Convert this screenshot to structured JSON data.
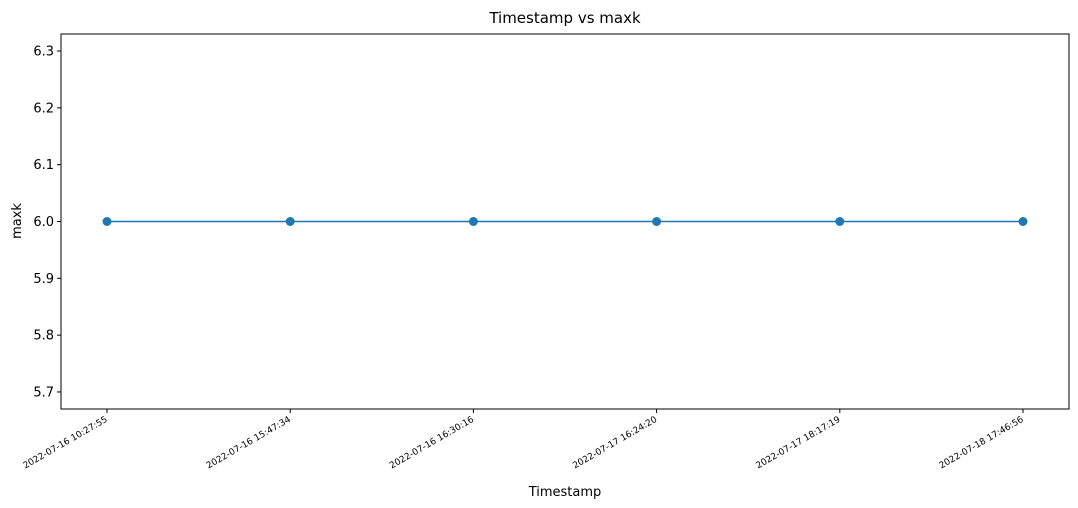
{
  "chart_data": {
    "type": "line",
    "title": "Timestamp vs maxk",
    "xlabel": "Timestamp",
    "ylabel": "maxk",
    "categories": [
      "2022-07-16 10:27:55",
      "2022-07-16 15:47:34",
      "2022-07-16 16:30:16",
      "2022-07-17 16:24:20",
      "2022-07-17 18:17:19",
      "2022-07-18 17:46:56"
    ],
    "series": [
      {
        "values": [
          6.0,
          6.0,
          6.0,
          6.0,
          6.0,
          6.0
        ],
        "color": "#1f77b4",
        "marker": "circle"
      }
    ],
    "ylim": [
      5.67,
      6.33
    ],
    "yticks": [
      "5.7",
      "5.8",
      "5.9",
      "6.0",
      "6.1",
      "6.2",
      "6.3"
    ],
    "grid": false,
    "legend": "none"
  }
}
